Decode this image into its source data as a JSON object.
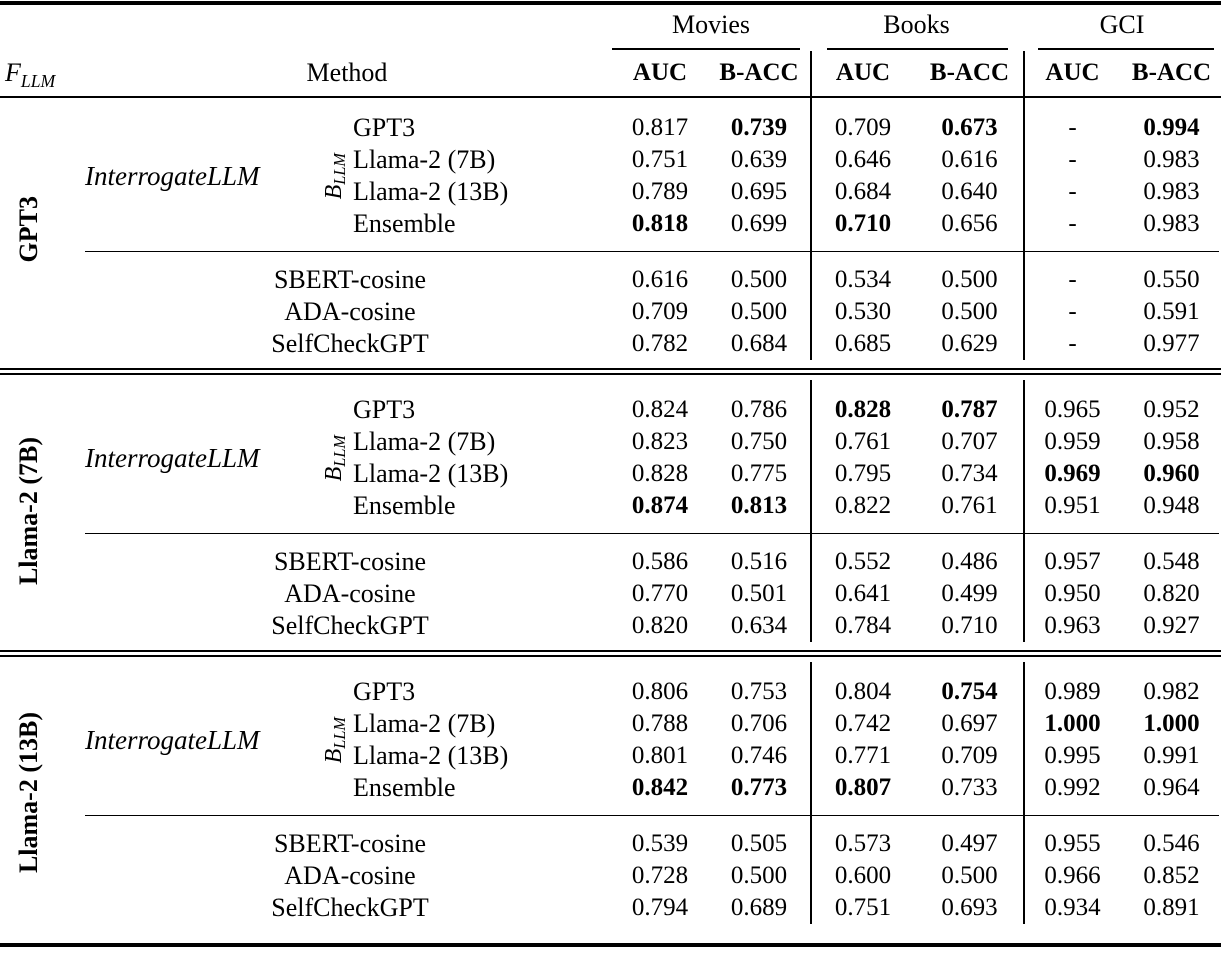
{
  "page": {
    "background": "#ffffff",
    "text_color": "#000000"
  },
  "header": {
    "fllm": {
      "base": "F",
      "sub": "LLM"
    },
    "method": "Method",
    "groups": [
      {
        "label": "Movies"
      },
      {
        "label": "Books"
      },
      {
        "label": "GCI"
      }
    ],
    "metric_headers": [
      "AUC",
      "B-ACC",
      "AUC",
      "B-ACC",
      "AUC",
      "B-ACC"
    ]
  },
  "labels": {
    "interrogate": "InterrogateLLM",
    "bllm": {
      "base": "B",
      "sub": "LLM"
    }
  },
  "blocks": [
    {
      "fllm": "GPT3",
      "interrogate_rows": [
        {
          "backbone": "GPT3",
          "values": [
            "0.817",
            "0.739",
            "0.709",
            "0.673",
            "-",
            "0.994"
          ],
          "bold": [
            0,
            1,
            0,
            1,
            0,
            1
          ]
        },
        {
          "backbone": "Llama-2 (7B)",
          "values": [
            "0.751",
            "0.639",
            "0.646",
            "0.616",
            "-",
            "0.983"
          ],
          "bold": [
            0,
            0,
            0,
            0,
            0,
            0
          ]
        },
        {
          "backbone": "Llama-2 (13B)",
          "values": [
            "0.789",
            "0.695",
            "0.684",
            "0.640",
            "-",
            "0.983"
          ],
          "bold": [
            0,
            0,
            0,
            0,
            0,
            0
          ]
        },
        {
          "backbone": "Ensemble",
          "values": [
            "0.818",
            "0.699",
            "0.710",
            "0.656",
            "-",
            "0.983"
          ],
          "bold": [
            1,
            0,
            1,
            0,
            0,
            0
          ]
        }
      ],
      "baseline_rows": [
        {
          "method": "SBERT-cosine",
          "values": [
            "0.616",
            "0.500",
            "0.534",
            "0.500",
            "-",
            "0.550"
          ],
          "bold": [
            0,
            0,
            0,
            0,
            0,
            0
          ]
        },
        {
          "method": "ADA-cosine",
          "values": [
            "0.709",
            "0.500",
            "0.530",
            "0.500",
            "-",
            "0.591"
          ],
          "bold": [
            0,
            0,
            0,
            0,
            0,
            0
          ]
        },
        {
          "method": "SelfCheckGPT",
          "values": [
            "0.782",
            "0.684",
            "0.685",
            "0.629",
            "-",
            "0.977"
          ],
          "bold": [
            0,
            0,
            0,
            0,
            0,
            0
          ]
        }
      ]
    },
    {
      "fllm": "Llama-2 (7B)",
      "interrogate_rows": [
        {
          "backbone": "GPT3",
          "values": [
            "0.824",
            "0.786",
            "0.828",
            "0.787",
            "0.965",
            "0.952"
          ],
          "bold": [
            0,
            0,
            1,
            1,
            0,
            0
          ]
        },
        {
          "backbone": "Llama-2 (7B)",
          "values": [
            "0.823",
            "0.750",
            "0.761",
            "0.707",
            "0.959",
            "0.958"
          ],
          "bold": [
            0,
            0,
            0,
            0,
            0,
            0
          ]
        },
        {
          "backbone": "Llama-2 (13B)",
          "values": [
            "0.828",
            "0.775",
            "0.795",
            "0.734",
            "0.969",
            "0.960"
          ],
          "bold": [
            0,
            0,
            0,
            0,
            1,
            1
          ]
        },
        {
          "backbone": "Ensemble",
          "values": [
            "0.874",
            "0.813",
            "0.822",
            "0.761",
            "0.951",
            "0.948"
          ],
          "bold": [
            1,
            1,
            0,
            0,
            0,
            0
          ]
        }
      ],
      "baseline_rows": [
        {
          "method": "SBERT-cosine",
          "values": [
            "0.586",
            "0.516",
            "0.552",
            "0.486",
            "0.957",
            "0.548"
          ],
          "bold": [
            0,
            0,
            0,
            0,
            0,
            0
          ]
        },
        {
          "method": "ADA-cosine",
          "values": [
            "0.770",
            "0.501",
            "0.641",
            "0.499",
            "0.950",
            "0.820"
          ],
          "bold": [
            0,
            0,
            0,
            0,
            0,
            0
          ]
        },
        {
          "method": "SelfCheckGPT",
          "values": [
            "0.820",
            "0.634",
            "0.784",
            "0.710",
            "0.963",
            "0.927"
          ],
          "bold": [
            0,
            0,
            0,
            0,
            0,
            0
          ]
        }
      ]
    },
    {
      "fllm": "Llama-2 (13B)",
      "interrogate_rows": [
        {
          "backbone": "GPT3",
          "values": [
            "0.806",
            "0.753",
            "0.804",
            "0.754",
            "0.989",
            "0.982"
          ],
          "bold": [
            0,
            0,
            0,
            1,
            0,
            0
          ]
        },
        {
          "backbone": "Llama-2 (7B)",
          "values": [
            "0.788",
            "0.706",
            "0.742",
            "0.697",
            "1.000",
            "1.000"
          ],
          "bold": [
            0,
            0,
            0,
            0,
            1,
            1
          ]
        },
        {
          "backbone": "Llama-2 (13B)",
          "values": [
            "0.801",
            "0.746",
            "0.771",
            "0.709",
            "0.995",
            "0.991"
          ],
          "bold": [
            0,
            0,
            0,
            0,
            0,
            0
          ]
        },
        {
          "backbone": "Ensemble",
          "values": [
            "0.842",
            "0.773",
            "0.807",
            "0.733",
            "0.992",
            "0.964"
          ],
          "bold": [
            1,
            1,
            1,
            0,
            0,
            0
          ]
        }
      ],
      "baseline_rows": [
        {
          "method": "SBERT-cosine",
          "values": [
            "0.539",
            "0.505",
            "0.573",
            "0.497",
            "0.955",
            "0.546"
          ],
          "bold": [
            0,
            0,
            0,
            0,
            0,
            0
          ]
        },
        {
          "method": "ADA-cosine",
          "values": [
            "0.728",
            "0.500",
            "0.600",
            "0.500",
            "0.966",
            "0.852"
          ],
          "bold": [
            0,
            0,
            0,
            0,
            0,
            0
          ]
        },
        {
          "method": "SelfCheckGPT",
          "values": [
            "0.794",
            "0.689",
            "0.751",
            "0.693",
            "0.934",
            "0.891"
          ],
          "bold": [
            0,
            0,
            0,
            0,
            0,
            0
          ]
        }
      ]
    }
  ]
}
